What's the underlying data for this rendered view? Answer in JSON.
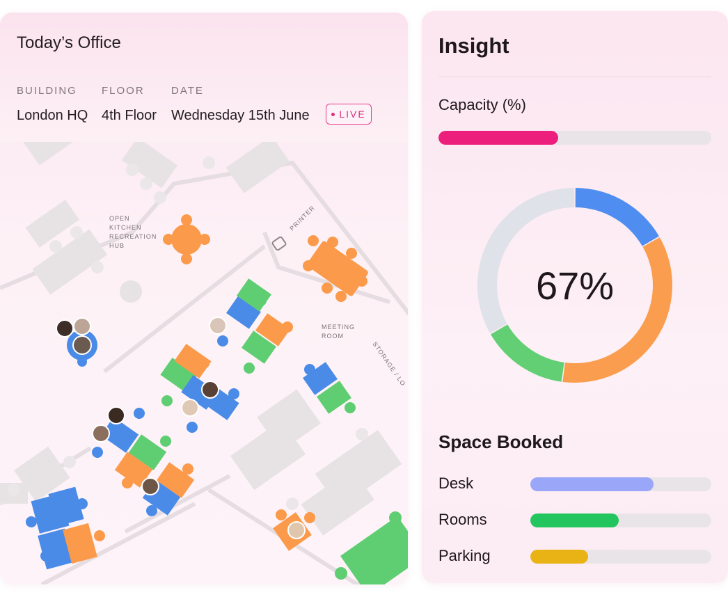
{
  "office": {
    "title": "Today’s Office",
    "building_label": "BUILDING",
    "building_value": "London HQ",
    "floor_label": "FLOOR",
    "floor_value": "4th Floor",
    "date_label": "DATE",
    "date_value": "Wednesday 15th June",
    "live_badge": "LIVE"
  },
  "map": {
    "labels": {
      "kitchen": [
        "OPEN",
        "KITCHEN",
        "RECREATION",
        "HUB"
      ],
      "printer": "PRINTER",
      "meeting": [
        "MEETING",
        "ROOM"
      ],
      "storage": "STORAGE / LO"
    },
    "colors": {
      "blue": "#4a8be8",
      "green": "#5fce72",
      "orange": "#fb9a4a",
      "grey": "#e6e2e4"
    }
  },
  "insight": {
    "title": "Insight",
    "capacity_label": "Capacity (%)",
    "capacity_fraction": 0.44,
    "donut_percent_label": "67%",
    "donut_segments": [
      {
        "name": "blue",
        "fraction": 0.167,
        "color": "#4f8ef0"
      },
      {
        "name": "orange",
        "fraction": 0.354,
        "color": "#fb9d4e"
      },
      {
        "name": "green",
        "fraction": 0.146,
        "color": "#62cf74"
      },
      {
        "name": "grey",
        "fraction": 0.333,
        "color": "#dfe2e8"
      }
    ],
    "space_booked_title": "Space Booked",
    "space_rows": [
      {
        "label": "Desk",
        "fraction": 0.68,
        "color": "#9aa6f7"
      },
      {
        "label": "Rooms",
        "fraction": 0.49,
        "color": "#22c55e"
      },
      {
        "label": "Parking",
        "fraction": 0.32,
        "color": "#eab315"
      }
    ]
  }
}
